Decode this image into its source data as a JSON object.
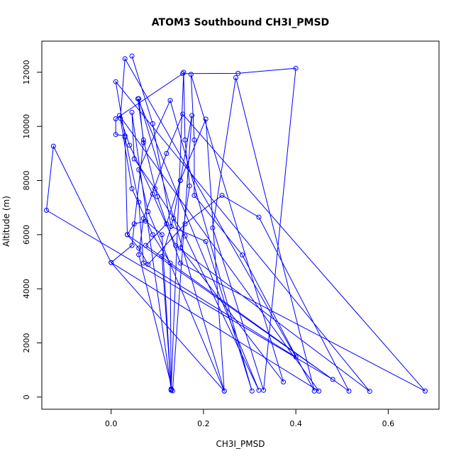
{
  "chart_data": {
    "type": "line",
    "title": "ATOM3 Southbound CH3I_PMSD",
    "xlabel": "CH3I_PMSD",
    "ylabel": "Altitude (m)",
    "xlim": [
      -0.15,
      0.71
    ],
    "ylim": [
      -450,
      13150
    ],
    "xticks": [
      0.0,
      0.2,
      0.4,
      0.6
    ],
    "xtick_labels": [
      "0.0",
      "0.2",
      "0.4",
      "0.6"
    ],
    "yticks": [
      0,
      2000,
      4000,
      6000,
      8000,
      10000,
      12000
    ],
    "ytick_labels": [
      "0",
      "2000",
      "4000",
      "6000",
      "8000",
      "10000",
      "12000"
    ],
    "grid": false,
    "legend": "none",
    "line_style": "lines with open circle markers",
    "series": [
      {
        "color": "#0000ff",
        "points": [
          [
            0.045,
            12600
          ],
          [
            0.09,
            10100
          ],
          [
            0.13,
            6300
          ],
          [
            0.205,
            5750
          ],
          [
            0.305,
            220
          ],
          [
            0.128,
            10960
          ],
          [
            0.06,
            8400
          ],
          [
            0.08,
            6850
          ],
          [
            0.245,
            220
          ],
          [
            0.06,
            11020
          ],
          [
            0.07,
            9400
          ],
          [
            0.045,
            5600
          ],
          [
            0.0,
            4970
          ],
          [
            0.45,
            220
          ],
          [
            0.018,
            10400
          ],
          [
            0.04,
            9300
          ],
          [
            0.09,
            7500
          ],
          [
            0.14,
            5600
          ],
          [
            0.56,
            210
          ],
          [
            0.01,
            11650
          ],
          [
            0.03,
            9600
          ],
          [
            0.06,
            7200
          ],
          [
            0.07,
            4950
          ],
          [
            0.4,
            1480
          ],
          [
            0.03,
            12500
          ],
          [
            0.02,
            10300
          ],
          [
            0.045,
            7700
          ],
          [
            0.09,
            6000
          ],
          [
            0.128,
            4950
          ],
          [
            0.13,
            300
          ],
          [
            0.045,
            10520
          ],
          [
            0.05,
            8800
          ],
          [
            0.095,
            7700
          ],
          [
            0.16,
            5950
          ],
          [
            0.32,
            250
          ],
          [
            0.058,
            11020
          ],
          [
            0.07,
            9500
          ],
          [
            0.1,
            7400
          ],
          [
            0.15,
            4950
          ],
          [
            0.68,
            220
          ],
          [
            0.155,
            10450
          ],
          [
            0.12,
            9000
          ],
          [
            0.07,
            6600
          ],
          [
            0.06,
            5260
          ],
          [
            0.133,
            230
          ],
          [
            0.175,
            10400
          ],
          [
            0.15,
            8000
          ],
          [
            0.135,
            6600
          ],
          [
            0.11,
            5200
          ],
          [
            0.13,
            280
          ],
          [
            0.157,
            12000
          ],
          [
            0.16,
            9500
          ],
          [
            0.17,
            7800
          ],
          [
            0.15,
            5500
          ],
          [
            0.373,
            560
          ],
          [
            0.173,
            11920
          ],
          [
            0.18,
            9500
          ],
          [
            0.18,
            7450
          ],
          [
            0.284,
            5250
          ],
          [
            0.44,
            220
          ],
          [
            0.27,
            11800
          ],
          [
            0.22,
            6250
          ],
          [
            0.33,
            250
          ],
          [
            0.4,
            12150
          ],
          [
            0.275,
            11960
          ],
          [
            0.155,
            11950
          ],
          [
            0.01,
            10280
          ],
          [
            0.01,
            9700
          ],
          [
            0.03,
            9650
          ],
          [
            0.035,
            6000
          ],
          [
            0.48,
            650
          ],
          [
            -0.14,
            6900
          ],
          [
            -0.125,
            9270
          ],
          [
            0.0,
            4970
          ],
          [
            0.245,
            220
          ],
          [
            0.205,
            10270
          ],
          [
            0.15,
            8000
          ],
          [
            0.12,
            6400
          ],
          [
            0.075,
            5600
          ],
          [
            0.515,
            220
          ],
          [
            0.32,
            6650
          ],
          [
            0.24,
            7450
          ],
          [
            0.16,
            6400
          ],
          [
            0.08,
            4900
          ],
          [
            0.06,
            5500
          ],
          [
            0.035,
            6000
          ],
          [
            0.05,
            6400
          ],
          [
            0.075,
            6500
          ],
          [
            0.11,
            6000
          ],
          [
            0.13,
            250
          ]
        ]
      }
    ]
  }
}
